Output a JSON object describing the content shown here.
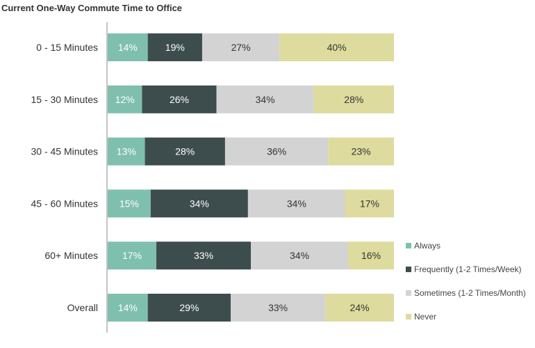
{
  "chart_data": {
    "type": "bar",
    "orientation": "horizontal",
    "stacked": true,
    "title": "Current One-Way Commute Time to Office",
    "categories": [
      "0 - 15 Minutes",
      "15 - 30 Minutes",
      "30 - 45 Minutes",
      "45 - 60 Minutes",
      "60+ Minutes",
      "Overall"
    ],
    "series": [
      {
        "name": "Always",
        "color": "#7fbfad",
        "text_color": "#ffffff",
        "values": [
          14,
          12,
          13,
          15,
          17,
          14
        ]
      },
      {
        "name": "Frequently (1-2 Times/Week)",
        "color": "#3d4d4d",
        "text_color": "#ffffff",
        "values": [
          19,
          26,
          28,
          34,
          33,
          29
        ]
      },
      {
        "name": "Sometimes (1-2 Times/Month)",
        "color": "#d3d3d3",
        "text_color": "#333333",
        "values": [
          27,
          34,
          36,
          34,
          34,
          33
        ]
      },
      {
        "name": "Never",
        "color": "#dedb9e",
        "text_color": "#333333",
        "values": [
          40,
          28,
          23,
          17,
          16,
          24
        ]
      }
    ],
    "value_suffix": "%",
    "legend_position": "bottom-right",
    "grid": false
  }
}
